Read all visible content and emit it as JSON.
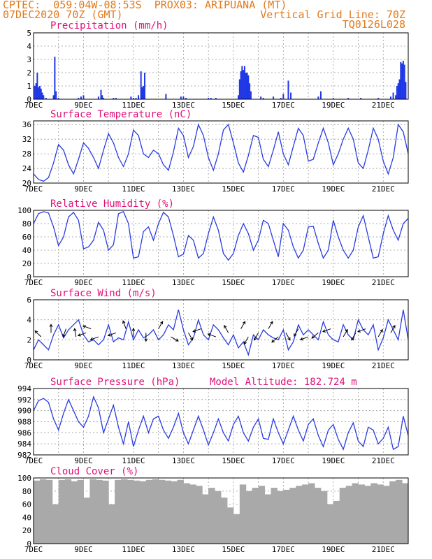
{
  "header": {
    "line1_left": "CPTEC:  059:04W-08:53S  PROX03: ARIPUANA (MT)",
    "line2_left": "07DEC2020 70Z (GMT)",
    "line2_right": "Vertical Grid Line: 70Z",
    "line3_right": "TQ0126L028"
  },
  "colors": {
    "header": "#e07a1e",
    "title": "#e0107a",
    "series": "#2a3ce0",
    "cloud": "#a9a9a9"
  },
  "chart_data": [
    {
      "type": "bar",
      "title": "Precipitation (mm/h)",
      "ylim": [
        0,
        5
      ],
      "yticks": [
        0,
        1,
        2,
        3,
        4,
        5
      ],
      "xticks": [
        "7DEC",
        "9DEC",
        "11DEC",
        "13DEC",
        "15DEC",
        "17DEC",
        "19DEC",
        "21DEC"
      ],
      "x_range_days": [
        7.0,
        22.0
      ],
      "x": [
        7.05,
        7.1,
        7.15,
        7.2,
        7.25,
        7.3,
        7.35,
        7.4,
        7.5,
        7.8,
        7.85,
        7.9,
        8.0,
        8.8,
        8.9,
        9.0,
        9.6,
        9.7,
        9.75,
        9.8,
        10.2,
        10.3,
        10.9,
        11.0,
        11.1,
        11.2,
        11.3,
        11.35,
        11.4,
        11.45,
        12.3,
        12.9,
        13.0,
        13.1,
        14.0,
        14.1,
        14.3,
        15.2,
        15.25,
        15.3,
        15.35,
        15.4,
        15.45,
        15.5,
        15.55,
        15.6,
        15.65,
        15.7,
        16.1,
        16.2,
        16.6,
        16.9,
        17.0,
        17.2,
        17.3,
        18.4,
        18.5,
        19.0,
        19.6,
        20.1,
        20.8,
        21.3,
        21.4,
        21.5,
        21.55,
        21.6,
        21.65,
        21.7,
        21.75,
        21.8,
        21.85,
        21.9
      ],
      "values": [
        1.0,
        1.2,
        2.0,
        0.9,
        1.0,
        0.8,
        0.5,
        0.3,
        0.1,
        0.3,
        3.2,
        0.6,
        0.1,
        0.1,
        0.2,
        0.3,
        0.2,
        0.7,
        0.3,
        0.1,
        0.1,
        0.1,
        0.2,
        0.1,
        0.1,
        0.3,
        2.1,
        0.9,
        1.0,
        2.0,
        0.4,
        0.2,
        0.2,
        0.1,
        0.1,
        0.1,
        0.1,
        0.3,
        1.5,
        2.1,
        2.5,
        2.2,
        2.5,
        2.0,
        2.0,
        1.8,
        1.2,
        0.6,
        0.2,
        0.1,
        0.2,
        0.1,
        0.4,
        1.4,
        0.5,
        0.2,
        0.6,
        0.1,
        0.1,
        0.1,
        0.1,
        0.2,
        0.5,
        0.3,
        1.0,
        1.2,
        1.5,
        2.8,
        2.7,
        2.9,
        2.6,
        1.3
      ]
    },
    {
      "type": "line",
      "title": "Surface Temperature (nC)",
      "ylim": [
        20,
        37
      ],
      "yticks": [
        20,
        24,
        28,
        32,
        36
      ],
      "xticks": [
        "7DEC",
        "9DEC",
        "11DEC",
        "13DEC",
        "15DEC",
        "17DEC",
        "19DEC",
        "21DEC"
      ],
      "x": [
        7.0,
        7.2,
        7.4,
        7.6,
        7.8,
        8.0,
        8.2,
        8.4,
        8.6,
        8.8,
        9.0,
        9.2,
        9.4,
        9.6,
        9.8,
        10.0,
        10.2,
        10.4,
        10.6,
        10.8,
        11.0,
        11.2,
        11.4,
        11.6,
        11.8,
        12.0,
        12.2,
        12.4,
        12.6,
        12.8,
        13.0,
        13.2,
        13.4,
        13.6,
        13.8,
        14.0,
        14.2,
        14.4,
        14.6,
        14.8,
        15.0,
        15.2,
        15.4,
        15.6,
        15.8,
        16.0,
        16.2,
        16.4,
        16.6,
        16.8,
        17.0,
        17.2,
        17.4,
        17.6,
        17.8,
        18.0,
        18.2,
        18.4,
        18.6,
        18.8,
        19.0,
        19.2,
        19.4,
        19.6,
        19.8,
        20.0,
        20.2,
        20.4,
        20.6,
        20.8,
        21.0,
        21.2,
        21.4,
        21.6,
        21.8,
        22.0
      ],
      "values": [
        22.5,
        21.0,
        20.5,
        21.5,
        25.5,
        30.5,
        29.0,
        25.0,
        22.5,
        26.5,
        31.0,
        29.5,
        27.0,
        24.0,
        29.0,
        33.5,
        31.0,
        27.0,
        24.5,
        28.0,
        34.5,
        33.0,
        28.0,
        27.0,
        29.0,
        28.0,
        25.0,
        23.5,
        28.5,
        35.0,
        33.0,
        27.0,
        30.0,
        36.0,
        33.0,
        27.0,
        23.5,
        28.0,
        34.5,
        36.0,
        31.0,
        25.5,
        23.0,
        27.5,
        33.0,
        32.5,
        26.5,
        24.5,
        29.0,
        34.0,
        28.0,
        25.0,
        30.0,
        35.0,
        33.0,
        26.0,
        26.5,
        31.0,
        35.0,
        31.0,
        25.0,
        28.0,
        32.0,
        35.0,
        32.0,
        25.5,
        24.0,
        29.0,
        35.0,
        32.0,
        26.0,
        22.5,
        27.0,
        36.0,
        34.0,
        28.0
      ]
    },
    {
      "type": "line",
      "title": "Relative Humidity (%)",
      "ylim": [
        0,
        100
      ],
      "yticks": [
        0,
        20,
        40,
        60,
        80,
        100
      ],
      "xticks": [
        "7DEC",
        "9DEC",
        "11DEC",
        "13DEC",
        "15DEC",
        "17DEC",
        "19DEC",
        "21DEC"
      ],
      "x": [
        7.0,
        7.2,
        7.4,
        7.6,
        7.8,
        8.0,
        8.2,
        8.4,
        8.6,
        8.8,
        9.0,
        9.2,
        9.4,
        9.6,
        9.8,
        10.0,
        10.2,
        10.4,
        10.6,
        10.8,
        11.0,
        11.2,
        11.4,
        11.6,
        11.8,
        12.0,
        12.2,
        12.4,
        12.6,
        12.8,
        13.0,
        13.2,
        13.4,
        13.6,
        13.8,
        14.0,
        14.2,
        14.4,
        14.6,
        14.8,
        15.0,
        15.2,
        15.4,
        15.6,
        15.8,
        16.0,
        16.2,
        16.4,
        16.6,
        16.8,
        17.0,
        17.2,
        17.4,
        17.6,
        17.8,
        18.0,
        18.2,
        18.4,
        18.6,
        18.8,
        19.0,
        19.2,
        19.4,
        19.6,
        19.8,
        20.0,
        20.2,
        20.4,
        20.6,
        20.8,
        21.0,
        21.2,
        21.4,
        21.6,
        21.8,
        22.0
      ],
      "values": [
        80,
        95,
        98,
        96,
        75,
        47,
        60,
        90,
        97,
        85,
        42,
        45,
        55,
        82,
        70,
        40,
        48,
        95,
        98,
        80,
        28,
        30,
        68,
        75,
        55,
        80,
        97,
        90,
        62,
        30,
        34,
        62,
        55,
        28,
        35,
        65,
        90,
        70,
        35,
        25,
        35,
        62,
        80,
        65,
        40,
        55,
        85,
        80,
        55,
        30,
        80,
        70,
        45,
        28,
        40,
        75,
        76,
        50,
        28,
        40,
        85,
        60,
        40,
        28,
        40,
        75,
        92,
        60,
        28,
        30,
        65,
        92,
        70,
        55,
        80,
        88
      ]
    },
    {
      "type": "line",
      "title": "Surface Wind (m/s)",
      "ylim": [
        0,
        6
      ],
      "yticks": [
        0,
        2,
        4,
        6
      ],
      "xticks": [
        "7DEC",
        "9DEC",
        "11DEC",
        "13DEC",
        "15DEC",
        "17DEC",
        "19DEC",
        "21DEC"
      ],
      "x": [
        7.0,
        7.2,
        7.4,
        7.6,
        7.8,
        8.0,
        8.2,
        8.4,
        8.6,
        8.8,
        9.0,
        9.2,
        9.4,
        9.6,
        9.8,
        10.0,
        10.2,
        10.4,
        10.6,
        10.8,
        11.0,
        11.2,
        11.4,
        11.6,
        11.8,
        12.0,
        12.2,
        12.4,
        12.6,
        12.8,
        13.0,
        13.2,
        13.4,
        13.6,
        13.8,
        14.0,
        14.2,
        14.4,
        14.6,
        14.8,
        15.0,
        15.2,
        15.4,
        15.6,
        15.8,
        16.0,
        16.2,
        16.4,
        16.6,
        16.8,
        17.0,
        17.2,
        17.4,
        17.6,
        17.8,
        18.0,
        18.2,
        18.4,
        18.6,
        18.8,
        19.0,
        19.2,
        19.4,
        19.6,
        19.8,
        20.0,
        20.2,
        20.4,
        20.6,
        20.8,
        21.0,
        21.2,
        21.4,
        21.6,
        21.8,
        22.0
      ],
      "values": [
        1.0,
        2.0,
        1.5,
        1.0,
        2.5,
        3.5,
        2.2,
        3.0,
        3.5,
        4.0,
        2.5,
        1.8,
        2.0,
        1.5,
        2.0,
        3.5,
        1.8,
        2.2,
        2.0,
        3.8,
        2.0,
        3.0,
        2.2,
        2.5,
        3.0,
        2.0,
        2.5,
        3.5,
        3.0,
        5.0,
        3.0,
        1.5,
        2.2,
        4.0,
        2.5,
        2.0,
        3.5,
        3.0,
        2.2,
        1.5,
        2.5,
        1.2,
        1.8,
        0.5,
        2.5,
        2.0,
        3.0,
        2.5,
        2.2,
        2.0,
        3.0,
        1.0,
        1.8,
        3.5,
        2.5,
        3.0,
        2.5,
        2.0,
        3.8,
        2.5,
        2.0,
        1.8,
        3.5,
        2.5,
        2.0,
        4.0,
        3.0,
        2.5,
        3.5,
        1.0,
        2.2,
        4.0,
        3.0,
        2.0,
        5.0,
        2.0
      ]
    },
    {
      "type": "line",
      "title": "Surface Pressure (hPa)",
      "annotation": "Model Altitude: 182.724  m",
      "ylim": [
        982,
        994
      ],
      "yticks": [
        982,
        984,
        986,
        988,
        990,
        992,
        994
      ],
      "xticks": [
        "7DEC",
        "9DEC",
        "11DEC",
        "13DEC",
        "15DEC",
        "17DEC",
        "19DEC",
        "21DEC"
      ],
      "x": [
        7.0,
        7.2,
        7.4,
        7.6,
        7.8,
        8.0,
        8.2,
        8.4,
        8.6,
        8.8,
        9.0,
        9.2,
        9.4,
        9.6,
        9.8,
        10.0,
        10.2,
        10.4,
        10.6,
        10.8,
        11.0,
        11.2,
        11.4,
        11.6,
        11.8,
        12.0,
        12.2,
        12.4,
        12.6,
        12.8,
        13.0,
        13.2,
        13.4,
        13.6,
        13.8,
        14.0,
        14.2,
        14.4,
        14.6,
        14.8,
        15.0,
        15.2,
        15.4,
        15.6,
        15.8,
        16.0,
        16.2,
        16.4,
        16.6,
        16.8,
        17.0,
        17.2,
        17.4,
        17.6,
        17.8,
        18.0,
        18.2,
        18.4,
        18.6,
        18.8,
        19.0,
        19.2,
        19.4,
        19.6,
        19.8,
        20.0,
        20.2,
        20.4,
        20.6,
        20.8,
        21.0,
        21.2,
        21.4,
        21.6,
        21.8,
        22.0
      ],
      "values": [
        990.0,
        991.8,
        992.2,
        991.5,
        988.5,
        986.5,
        989.5,
        992.0,
        990.0,
        988.0,
        987.0,
        989.0,
        992.5,
        990.5,
        986.0,
        988.5,
        991.0,
        987.0,
        984.0,
        988.0,
        983.5,
        986.5,
        989.0,
        986.0,
        988.5,
        989.0,
        986.5,
        985.0,
        987.0,
        989.5,
        986.0,
        984.0,
        986.5,
        989.0,
        986.5,
        983.8,
        986.0,
        988.5,
        986.0,
        984.5,
        987.5,
        989.0,
        986.0,
        984.5,
        987.0,
        988.5,
        985.0,
        984.8,
        988.5,
        986.0,
        984.0,
        986.5,
        989.0,
        986.5,
        984.5,
        987.5,
        988.5,
        985.5,
        983.5,
        986.5,
        987.5,
        984.8,
        983.0,
        986.0,
        987.8,
        984.5,
        983.5,
        987.0,
        986.5,
        984.0,
        985.0,
        987.0,
        983.0,
        983.5,
        989.0,
        985.5
      ]
    },
    {
      "type": "bar",
      "title": "Cloud Cover (%)",
      "ylim": [
        0,
        100
      ],
      "yticks": [
        0,
        20,
        40,
        60,
        80,
        100
      ],
      "xticks": [
        "7DEC",
        "9DEC",
        "11DEC",
        "13DEC",
        "15DEC",
        "17DEC",
        "19DEC",
        "21DEC"
      ],
      "x": [
        7.0,
        7.25,
        7.5,
        7.75,
        8.0,
        8.25,
        8.5,
        8.75,
        9.0,
        9.25,
        9.5,
        9.75,
        10.0,
        10.25,
        10.5,
        10.75,
        11.0,
        11.25,
        11.5,
        11.75,
        12.0,
        12.25,
        12.5,
        12.75,
        13.0,
        13.25,
        13.5,
        13.75,
        14.0,
        14.25,
        14.5,
        14.75,
        15.0,
        15.25,
        15.5,
        15.75,
        16.0,
        16.25,
        16.5,
        16.75,
        17.0,
        17.25,
        17.5,
        17.75,
        18.0,
        18.25,
        18.5,
        18.75,
        19.0,
        19.25,
        19.5,
        19.75,
        20.0,
        20.25,
        20.5,
        20.75,
        21.0,
        21.25,
        21.5,
        21.75
      ],
      "values": [
        96,
        98,
        97,
        60,
        97,
        98,
        95,
        97,
        70,
        98,
        97,
        96,
        60,
        97,
        98,
        97,
        96,
        95,
        97,
        98,
        97,
        96,
        95,
        97,
        92,
        90,
        88,
        75,
        85,
        80,
        70,
        55,
        45,
        90,
        80,
        85,
        88,
        75,
        85,
        80,
        82,
        85,
        88,
        90,
        92,
        85,
        80,
        60,
        65,
        85,
        88,
        92,
        90,
        88,
        92,
        90,
        88,
        95,
        97,
        92
      ]
    }
  ]
}
